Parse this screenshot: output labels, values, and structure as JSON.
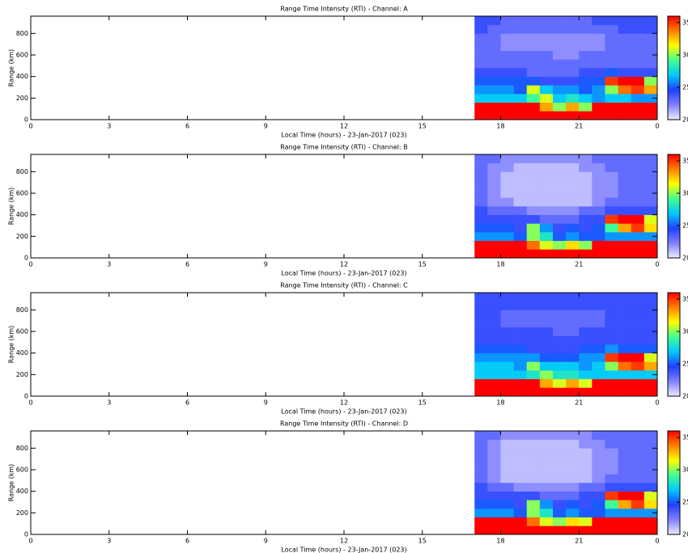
{
  "chart_data": [
    {
      "type": "heatmap",
      "title": "Range Time Intensity (RTI) - Channel: A",
      "xlabel": "Local Time (hours) - 23-Jan-2017 (023)",
      "ylabel": "Range (km)",
      "xlim": [
        0,
        24
      ],
      "xticks": [
        0,
        3,
        6,
        9,
        12,
        15,
        18,
        21,
        {
          "value": 24,
          "label": "0"
        }
      ],
      "ylim": [
        0,
        960
      ],
      "yticks": [
        0,
        200,
        400,
        600,
        800
      ],
      "clim": [
        20,
        36
      ],
      "cticks": [
        20,
        25,
        30,
        35
      ],
      "colormap": [
        "#ececff",
        "#8080ff",
        "#2040ff",
        "#00c8ff",
        "#40ff90",
        "#ffff00",
        "#ff8000",
        "#ff0000"
      ],
      "xbins": [
        17,
        17.5,
        18,
        18.5,
        19,
        19.5,
        20,
        20.5,
        21,
        21.5,
        22,
        22.5,
        23,
        23.5,
        24
      ],
      "ybins": [
        0,
        80,
        160,
        240,
        320,
        400,
        480,
        560,
        640,
        720,
        800,
        880,
        960
      ],
      "z": [
        [
          36,
          36,
          36,
          36,
          36,
          36,
          36,
          36,
          36,
          36,
          36,
          36,
          36,
          36
        ],
        [
          36,
          36,
          36,
          36,
          36,
          33,
          30,
          33,
          30,
          36,
          36,
          36,
          36,
          36
        ],
        [
          27,
          27,
          27,
          27,
          29,
          31,
          27,
          28,
          27,
          26,
          27,
          27,
          26,
          26
        ],
        [
          26,
          26,
          26,
          25,
          31,
          27,
          26,
          26,
          25,
          26,
          30,
          34,
          35,
          33
        ],
        [
          25,
          25,
          25,
          25,
          25,
          24,
          24,
          24,
          25,
          25,
          35,
          36,
          36,
          30
        ],
        [
          24,
          24,
          24,
          24,
          23,
          23,
          23,
          23,
          24,
          24,
          25,
          24,
          24,
          24
        ],
        [
          23,
          23,
          23,
          23,
          23,
          23,
          23,
          23,
          23,
          23,
          23,
          23,
          23,
          23
        ],
        [
          23,
          23,
          23,
          23,
          23,
          23,
          22,
          22,
          23,
          23,
          23,
          23,
          23,
          23
        ],
        [
          23,
          23,
          22,
          22,
          22,
          22,
          22,
          22,
          22,
          22,
          23,
          23,
          23,
          23
        ],
        [
          23,
          23,
          22,
          22,
          22,
          22,
          22,
          22,
          22,
          22,
          23,
          23,
          23,
          23
        ],
        [
          24,
          23,
          23,
          23,
          23,
          23,
          23,
          23,
          23,
          23,
          23,
          24,
          24,
          24
        ],
        [
          24,
          24,
          23,
          23,
          23,
          23,
          23,
          23,
          23,
          24,
          24,
          24,
          24,
          24
        ]
      ]
    },
    {
      "type": "heatmap",
      "title": "Range Time Intensity (RTI) - Channel: B",
      "xlabel": "Local Time (hours) - 23-Jan-2017 (023)",
      "ylabel": "Range (km)",
      "xlim": [
        0,
        24
      ],
      "xticks": [
        0,
        3,
        6,
        9,
        12,
        15,
        18,
        21,
        {
          "value": 24,
          "label": "0"
        }
      ],
      "ylim": [
        0,
        960
      ],
      "yticks": [
        0,
        200,
        400,
        600,
        800
      ],
      "clim": [
        20,
        36
      ],
      "cticks": [
        20,
        25,
        30,
        35
      ],
      "colormap": [
        "#ececff",
        "#8080ff",
        "#2040ff",
        "#00c8ff",
        "#40ff90",
        "#ffff00",
        "#ff8000",
        "#ff0000"
      ],
      "xbins": [
        17,
        17.5,
        18,
        18.5,
        19,
        19.5,
        20,
        20.5,
        21,
        21.5,
        22,
        22.5,
        23,
        23.5,
        24
      ],
      "ybins": [
        0,
        80,
        160,
        240,
        320,
        400,
        480,
        560,
        640,
        720,
        800,
        880,
        960
      ],
      "z": [
        [
          36,
          36,
          36,
          36,
          36,
          36,
          36,
          36,
          36,
          36,
          36,
          36,
          36,
          36
        ],
        [
          36,
          36,
          36,
          36,
          34,
          31,
          30,
          32,
          30,
          36,
          36,
          36,
          36,
          36
        ],
        [
          26,
          26,
          26,
          25,
          30,
          28,
          25,
          26,
          25,
          25,
          26,
          26,
          26,
          26
        ],
        [
          25,
          25,
          25,
          24,
          30,
          26,
          24,
          25,
          24,
          25,
          29,
          33,
          35,
          32
        ],
        [
          24,
          24,
          24,
          24,
          24,
          23,
          23,
          23,
          24,
          24,
          35,
          36,
          36,
          31
        ],
        [
          24,
          23,
          23,
          23,
          22,
          22,
          22,
          22,
          23,
          23,
          24,
          24,
          24,
          24
        ],
        [
          23,
          22,
          22,
          21,
          21,
          21,
          21,
          21,
          21,
          22,
          23,
          23,
          23,
          23
        ],
        [
          23,
          22,
          21,
          21,
          21,
          21,
          21,
          21,
          21,
          22,
          22,
          23,
          23,
          23
        ],
        [
          23,
          22,
          21,
          21,
          21,
          21,
          21,
          21,
          21,
          22,
          22,
          23,
          23,
          23
        ],
        [
          23,
          22,
          21,
          21,
          21,
          21,
          21,
          21,
          21,
          22,
          22,
          23,
          23,
          23
        ],
        [
          23,
          22,
          22,
          21,
          21,
          21,
          21,
          21,
          22,
          22,
          23,
          23,
          23,
          23
        ],
        [
          23,
          23,
          22,
          22,
          22,
          22,
          22,
          22,
          22,
          23,
          23,
          23,
          23,
          23
        ]
      ]
    },
    {
      "type": "heatmap",
      "title": "Range Time Intensity (RTI) - Channel: C",
      "xlabel": "Local Time (hours) - 23-Jan-2017 (023)",
      "ylabel": "Range (km)",
      "xlim": [
        0,
        24
      ],
      "xticks": [
        0,
        3,
        6,
        9,
        12,
        15,
        18,
        21,
        {
          "value": 24,
          "label": "0"
        }
      ],
      "ylim": [
        0,
        960
      ],
      "yticks": [
        0,
        200,
        400,
        600,
        800
      ],
      "clim": [
        20,
        36
      ],
      "cticks": [
        20,
        25,
        30,
        35
      ],
      "colormap": [
        "#ececff",
        "#8080ff",
        "#2040ff",
        "#00c8ff",
        "#40ff90",
        "#ffff00",
        "#ff8000",
        "#ff0000"
      ],
      "xbins": [
        17,
        17.5,
        18,
        18.5,
        19,
        19.5,
        20,
        20.5,
        21,
        21.5,
        22,
        22.5,
        23,
        23.5,
        24
      ],
      "ybins": [
        0,
        80,
        160,
        240,
        320,
        400,
        480,
        560,
        640,
        720,
        800,
        880,
        960
      ],
      "z": [
        [
          36,
          36,
          36,
          36,
          36,
          36,
          36,
          36,
          36,
          36,
          36,
          36,
          36,
          36
        ],
        [
          36,
          36,
          36,
          36,
          36,
          33,
          31,
          33,
          31,
          36,
          36,
          36,
          36,
          36
        ],
        [
          27,
          27,
          27,
          27,
          28,
          30,
          28,
          28,
          27,
          27,
          27,
          27,
          27,
          27
        ],
        [
          27,
          27,
          27,
          26,
          30,
          27,
          27,
          27,
          26,
          27,
          30,
          34,
          35,
          33
        ],
        [
          26,
          26,
          26,
          26,
          26,
          25,
          25,
          25,
          26,
          26,
          35,
          36,
          36,
          31
        ],
        [
          25,
          25,
          25,
          25,
          24,
          24,
          24,
          24,
          25,
          25,
          26,
          25,
          25,
          25
        ],
        [
          24,
          24,
          24,
          24,
          24,
          24,
          24,
          24,
          24,
          24,
          24,
          24,
          24,
          24
        ],
        [
          24,
          24,
          24,
          24,
          24,
          24,
          23,
          23,
          24,
          24,
          24,
          24,
          24,
          24
        ],
        [
          24,
          24,
          23,
          23,
          23,
          23,
          23,
          23,
          23,
          23,
          24,
          24,
          24,
          24
        ],
        [
          24,
          24,
          23,
          23,
          23,
          23,
          23,
          23,
          23,
          23,
          24,
          24,
          24,
          24
        ],
        [
          24,
          24,
          24,
          24,
          24,
          24,
          24,
          24,
          24,
          24,
          24,
          24,
          24,
          24
        ],
        [
          24,
          24,
          24,
          24,
          24,
          24,
          24,
          24,
          24,
          24,
          24,
          24,
          24,
          24
        ]
      ]
    },
    {
      "type": "heatmap",
      "title": "Range Time Intensity (RTI) - Channel: D",
      "xlabel": "Local Time (hours) - 23-Jan-2017 (023)",
      "ylabel": "Range (km)",
      "xlim": [
        0,
        24
      ],
      "xticks": [
        0,
        3,
        6,
        9,
        12,
        15,
        18,
        21,
        {
          "value": 24,
          "label": "0"
        }
      ],
      "ylim": [
        0,
        960
      ],
      "yticks": [
        0,
        200,
        400,
        600,
        800
      ],
      "clim": [
        20,
        36
      ],
      "cticks": [
        20,
        25,
        30,
        35
      ],
      "colormap": [
        "#ececff",
        "#8080ff",
        "#2040ff",
        "#00c8ff",
        "#40ff90",
        "#ffff00",
        "#ff8000",
        "#ff0000"
      ],
      "xbins": [
        17,
        17.5,
        18,
        18.5,
        19,
        19.5,
        20,
        20.5,
        21,
        21.5,
        22,
        22.5,
        23,
        23.5,
        24
      ],
      "ybins": [
        0,
        80,
        160,
        240,
        320,
        400,
        480,
        560,
        640,
        720,
        800,
        880,
        960
      ],
      "z": [
        [
          36,
          36,
          36,
          36,
          36,
          36,
          36,
          36,
          36,
          36,
          36,
          36,
          36,
          36
        ],
        [
          36,
          36,
          36,
          36,
          34,
          31,
          30,
          32,
          31,
          36,
          36,
          36,
          36,
          36
        ],
        [
          26,
          26,
          26,
          25,
          30,
          28,
          25,
          26,
          25,
          25,
          26,
          26,
          26,
          26
        ],
        [
          25,
          25,
          25,
          24,
          30,
          26,
          24,
          25,
          24,
          25,
          29,
          33,
          35,
          32
        ],
        [
          24,
          24,
          24,
          24,
          24,
          23,
          23,
          23,
          24,
          24,
          35,
          36,
          36,
          31
        ],
        [
          24,
          23,
          23,
          22,
          22,
          22,
          22,
          22,
          23,
          23,
          24,
          24,
          24,
          24
        ],
        [
          23,
          22,
          21,
          21,
          21,
          21,
          21,
          21,
          21,
          22,
          23,
          23,
          23,
          23
        ],
        [
          23,
          22,
          21,
          21,
          21,
          21,
          21,
          21,
          21,
          22,
          22,
          23,
          23,
          23
        ],
        [
          23,
          22,
          21,
          21,
          21,
          21,
          21,
          21,
          21,
          22,
          22,
          23,
          23,
          23
        ],
        [
          23,
          22,
          21,
          21,
          21,
          21,
          21,
          21,
          21,
          22,
          22,
          23,
          23,
          23
        ],
        [
          23,
          22,
          21,
          21,
          21,
          21,
          21,
          21,
          22,
          22,
          23,
          23,
          23,
          23
        ],
        [
          23,
          23,
          22,
          22,
          22,
          22,
          22,
          22,
          22,
          23,
          23,
          23,
          23,
          23
        ]
      ]
    }
  ]
}
